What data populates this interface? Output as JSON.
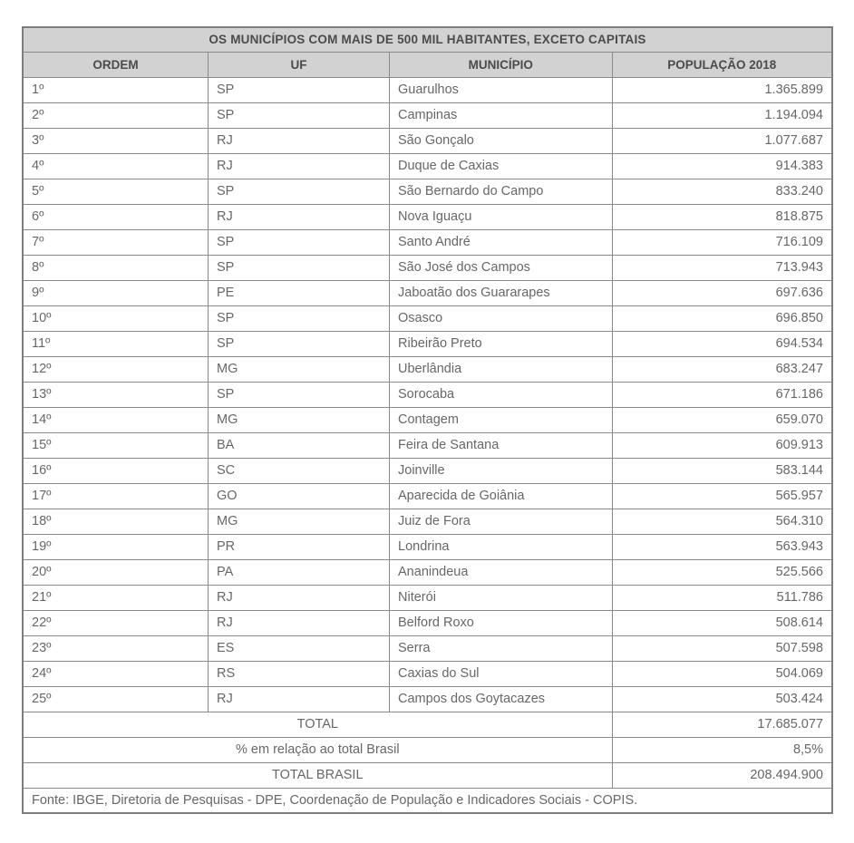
{
  "table": {
    "title": "OS  MUNICÍPIOS COM MAIS DE 500 MIL HABITANTES, EXCETO CAPITAIS",
    "columns": {
      "ordem": "ORDEM",
      "uf": "UF",
      "municipio": "MUNICÍPIO",
      "populacao": "POPULAÇÃO 2018"
    },
    "rows": [
      {
        "ordem": "1º",
        "uf": "SP",
        "municipio": "Guarulhos",
        "populacao": "1.365.899"
      },
      {
        "ordem": "2º",
        "uf": "SP",
        "municipio": "Campinas",
        "populacao": "1.194.094"
      },
      {
        "ordem": "3º",
        "uf": "RJ",
        "municipio": "São Gonçalo",
        "populacao": "1.077.687"
      },
      {
        "ordem": "4º",
        "uf": "RJ",
        "municipio": "Duque de Caxias",
        "populacao": "914.383"
      },
      {
        "ordem": "5º",
        "uf": "SP",
        "municipio": "São Bernardo do Campo",
        "populacao": "833.240"
      },
      {
        "ordem": "6º",
        "uf": "RJ",
        "municipio": "Nova Iguaçu",
        "populacao": "818.875"
      },
      {
        "ordem": "7º",
        "uf": "SP",
        "municipio": "Santo André",
        "populacao": "716.109"
      },
      {
        "ordem": "8º",
        "uf": "SP",
        "municipio": "São José dos Campos",
        "populacao": "713.943"
      },
      {
        "ordem": "9º",
        "uf": "PE",
        "municipio": "Jaboatão dos Guararapes",
        "populacao": "697.636"
      },
      {
        "ordem": "10º",
        "uf": "SP",
        "municipio": "Osasco",
        "populacao": "696.850"
      },
      {
        "ordem": "11º",
        "uf": "SP",
        "municipio": "Ribeirão Preto",
        "populacao": "694.534"
      },
      {
        "ordem": "12º",
        "uf": "MG",
        "municipio": "Uberlândia",
        "populacao": "683.247"
      },
      {
        "ordem": "13º",
        "uf": "SP",
        "municipio": "Sorocaba",
        "populacao": "671.186"
      },
      {
        "ordem": "14º",
        "uf": "MG",
        "municipio": "Contagem",
        "populacao": "659.070"
      },
      {
        "ordem": "15º",
        "uf": "BA",
        "municipio": "Feira de Santana",
        "populacao": "609.913"
      },
      {
        "ordem": "16º",
        "uf": "SC",
        "municipio": "Joinville",
        "populacao": "583.144"
      },
      {
        "ordem": "17º",
        "uf": "GO",
        "municipio": "Aparecida de Goiânia",
        "populacao": "565.957"
      },
      {
        "ordem": "18º",
        "uf": "MG",
        "municipio": "Juiz de Fora",
        "populacao": "564.310"
      },
      {
        "ordem": "19º",
        "uf": "PR",
        "municipio": "Londrina",
        "populacao": "563.943"
      },
      {
        "ordem": "20º",
        "uf": "PA",
        "municipio": "Ananindeua",
        "populacao": "525.566"
      },
      {
        "ordem": "21º",
        "uf": "RJ",
        "municipio": "Niterói",
        "populacao": "511.786"
      },
      {
        "ordem": "22º",
        "uf": "RJ",
        "municipio": "Belford Roxo",
        "populacao": "508.614"
      },
      {
        "ordem": "23º",
        "uf": "ES",
        "municipio": "Serra",
        "populacao": "507.598"
      },
      {
        "ordem": "24º",
        "uf": "RS",
        "municipio": "Caxias do Sul",
        "populacao": "504.069"
      },
      {
        "ordem": "25º",
        "uf": "RJ",
        "municipio": "Campos dos Goytacazes",
        "populacao": "503.424"
      }
    ],
    "summary": [
      {
        "label": "TOTAL",
        "value": "17.685.077"
      },
      {
        "label": "% em relação ao total Brasil",
        "value": "8,5%"
      },
      {
        "label": "TOTAL BRASIL",
        "value": "208.494.900"
      }
    ],
    "source": "Fonte: IBGE, Diretoria de Pesquisas - DPE, Coordenação de População e Indicadores Sociais - COPIS."
  },
  "colors": {
    "header_bg": "#d2d2d2",
    "outer_border": "#7d7d7d",
    "inner_border": "#8a8a8a",
    "header_text": "#4b4b4b",
    "body_text": "#676767"
  }
}
